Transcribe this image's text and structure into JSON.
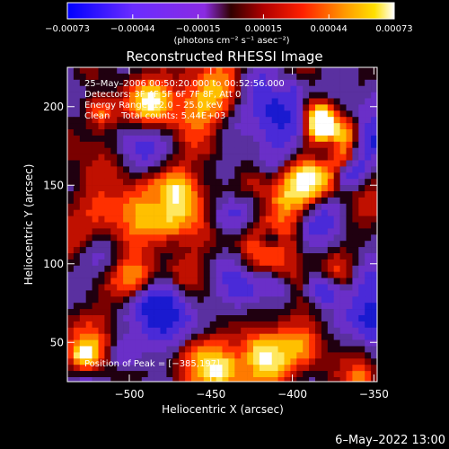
{
  "chart_data": {
    "type": "heatmap",
    "title": "Reconstructed RHESSI Image",
    "xlabel": "Heliocentric X (arcsec)",
    "ylabel": "Heliocentric Y (arcsec)",
    "xlim": [
      -538,
      -348
    ],
    "ylim": [
      25,
      225
    ],
    "x_ticks": [
      -500,
      -450,
      -400,
      -350
    ],
    "y_ticks": [
      50,
      100,
      150,
      200
    ],
    "x_tick_labels": [
      "−500",
      "−450",
      "−400",
      "−350"
    ],
    "y_tick_labels": [
      "50",
      "100",
      "150",
      "200"
    ],
    "colorbar": {
      "min": -0.00073,
      "max": 0.00073,
      "ticks": [
        "−0.00073",
        "−0.00044",
        "−0.00015",
        "0.00015",
        "0.00044",
        "0.00073"
      ],
      "unit_label": "(photons cm⁻² s⁻¹ asec⁻²)",
      "colors": [
        "#0000ff",
        "#6a2cff",
        "#8a2be2",
        "#b00000",
        "#ff2000",
        "#ff8c00",
        "#ffd700",
        "#ffffff"
      ]
    },
    "annotations": {
      "time": "25–May–2006 00:50:20.000 to 00:52:56.000",
      "detectors": "Detectors: 3F 4F 5F 6F 7F 8F, Att 0",
      "energy": "Energy Range: 12.0 – 25.0 keV",
      "clean": "Clean    Total counts: 5.44E+03",
      "peak": "Position of Peak = [−385,197]"
    },
    "peak": [
      -385,
      197
    ],
    "timestamp": "6–May–2022 13:00"
  }
}
